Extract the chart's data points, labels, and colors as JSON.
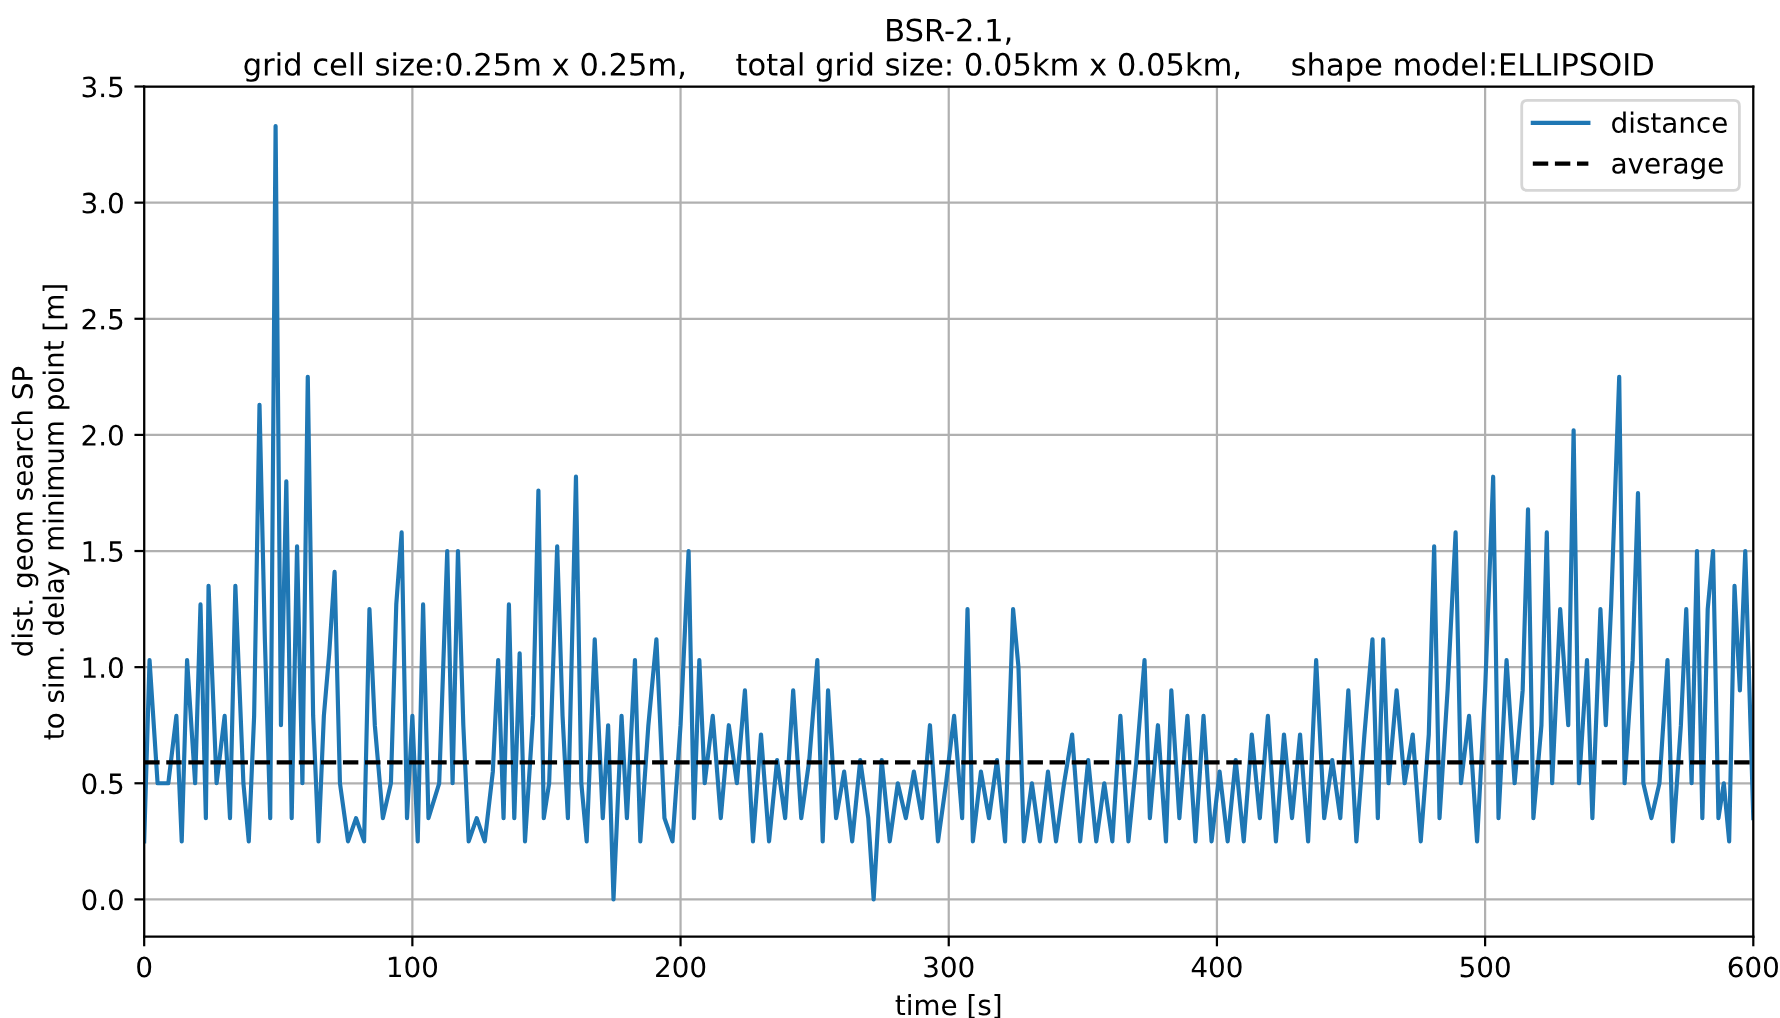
{
  "chart_data": {
    "type": "line",
    "title": "BSR-2.1,\ngrid cell size:0.25m x 0.25m,     total grid size: 0.05km x 0.05km,     shape model:ELLIPSOID",
    "xlabel": "time [s]",
    "ylabel": "dist. geom search SP\nto sim. delay minimum point [m]",
    "series": [
      {
        "name": "distance",
        "color": "#1f77b4",
        "x": [
          0,
          2,
          5,
          9,
          12,
          14,
          16,
          19,
          21,
          23,
          24,
          27,
          30,
          32,
          34,
          37,
          39,
          41,
          43,
          45,
          47,
          49,
          51,
          53,
          55,
          57,
          59,
          61,
          63,
          65,
          67,
          69,
          71,
          73,
          76,
          79,
          82,
          84,
          86,
          89,
          92,
          94,
          96,
          98,
          100,
          102,
          104,
          106,
          110,
          113,
          115,
          117,
          119,
          121,
          124,
          127,
          130,
          132,
          134,
          136,
          138,
          140,
          142,
          145,
          147,
          149,
          151,
          154,
          156,
          158,
          161,
          163,
          165,
          168,
          171,
          173,
          175,
          178,
          180,
          183,
          185,
          188,
          191,
          194,
          197,
          200,
          203,
          205,
          207,
          209,
          212,
          215,
          218,
          221,
          224,
          227,
          230,
          233,
          236,
          239,
          242,
          245,
          248,
          251,
          253,
          255,
          258,
          261,
          264,
          267,
          270,
          272,
          275,
          278,
          281,
          284,
          287,
          290,
          293,
          296,
          299,
          302,
          305,
          307,
          309,
          312,
          315,
          318,
          321,
          324,
          326,
          328,
          331,
          334,
          337,
          340,
          343,
          346,
          349,
          352,
          355,
          358,
          361,
          364,
          367,
          370,
          373,
          375,
          378,
          381,
          383,
          386,
          389,
          392,
          395,
          398,
          401,
          404,
          407,
          410,
          413,
          416,
          419,
          422,
          425,
          428,
          431,
          434,
          437,
          440,
          443,
          446,
          449,
          452,
          455,
          458,
          460,
          462,
          464,
          467,
          470,
          473,
          476,
          479,
          481,
          483,
          486,
          489,
          491,
          494,
          497,
          500,
          503,
          505,
          508,
          511,
          514,
          516,
          518,
          521,
          523,
          525,
          528,
          531,
          533,
          535,
          538,
          540,
          543,
          545,
          547,
          550,
          552,
          555,
          557,
          559,
          562,
          565,
          568,
          570,
          573,
          575,
          577,
          579,
          581,
          583,
          585,
          587,
          589,
          591,
          593,
          595,
          597,
          600
        ],
        "values": [
          0.25,
          1.03,
          0.5,
          0.5,
          0.79,
          0.25,
          1.03,
          0.5,
          1.27,
          0.35,
          1.35,
          0.5,
          0.79,
          0.35,
          1.35,
          0.5,
          0.25,
          0.79,
          2.13,
          1.12,
          0.35,
          3.33,
          0.75,
          1.8,
          0.35,
          1.52,
          0.5,
          2.25,
          0.79,
          0.25,
          0.79,
          1.06,
          1.41,
          0.5,
          0.25,
          0.35,
          0.25,
          1.25,
          0.75,
          0.35,
          0.5,
          1.27,
          1.58,
          0.35,
          0.79,
          0.25,
          1.27,
          0.35,
          0.5,
          1.5,
          0.5,
          1.5,
          0.75,
          0.25,
          0.35,
          0.25,
          0.55,
          1.03,
          0.35,
          1.27,
          0.35,
          1.06,
          0.25,
          0.79,
          1.76,
          0.35,
          0.5,
          1.52,
          0.79,
          0.35,
          1.82,
          0.5,
          0.25,
          1.12,
          0.35,
          0.75,
          0.0,
          0.79,
          0.35,
          1.03,
          0.25,
          0.75,
          1.12,
          0.35,
          0.25,
          0.75,
          1.5,
          0.35,
          1.03,
          0.5,
          0.79,
          0.35,
          0.75,
          0.5,
          0.9,
          0.25,
          0.71,
          0.25,
          0.6,
          0.35,
          0.9,
          0.35,
          0.6,
          1.03,
          0.25,
          0.9,
          0.35,
          0.55,
          0.25,
          0.6,
          0.35,
          0.0,
          0.6,
          0.25,
          0.5,
          0.35,
          0.55,
          0.35,
          0.75,
          0.25,
          0.5,
          0.79,
          0.35,
          1.25,
          0.25,
          0.55,
          0.35,
          0.6,
          0.25,
          1.25,
          1.0,
          0.25,
          0.5,
          0.25,
          0.55,
          0.25,
          0.5,
          0.71,
          0.25,
          0.6,
          0.25,
          0.5,
          0.25,
          0.79,
          0.25,
          0.6,
          1.03,
          0.35,
          0.75,
          0.25,
          0.9,
          0.35,
          0.79,
          0.25,
          0.79,
          0.25,
          0.55,
          0.25,
          0.6,
          0.25,
          0.71,
          0.35,
          0.79,
          0.25,
          0.71,
          0.35,
          0.71,
          0.25,
          1.03,
          0.35,
          0.6,
          0.35,
          0.9,
          0.25,
          0.71,
          1.12,
          0.35,
          1.12,
          0.5,
          0.9,
          0.5,
          0.71,
          0.25,
          0.71,
          1.52,
          0.35,
          0.9,
          1.58,
          0.5,
          0.79,
          0.25,
          0.9,
          1.82,
          0.35,
          1.03,
          0.5,
          0.9,
          1.68,
          0.35,
          0.75,
          1.58,
          0.5,
          1.25,
          0.75,
          2.02,
          0.5,
          1.03,
          0.35,
          1.25,
          0.75,
          1.27,
          2.25,
          0.5,
          1.03,
          1.75,
          0.5,
          0.35,
          0.5,
          1.03,
          0.25,
          0.75,
          1.25,
          0.5,
          1.5,
          0.35,
          1.25,
          1.5,
          0.35,
          0.5,
          0.25,
          1.35,
          0.9,
          1.5,
          0.35
        ]
      }
    ],
    "ref_lines": [
      {
        "axis": "y",
        "value": 0.59,
        "label": "average",
        "color": "#000000",
        "line_style": "dashed"
      }
    ],
    "xlim": [
      0,
      600
    ],
    "ylim": [
      -0.16,
      3.5
    ],
    "xticks": [
      0,
      100,
      200,
      300,
      400,
      500,
      600
    ],
    "yticks": [
      {
        "value": 0,
        "label": "0.0"
      },
      0.5,
      {
        "value": 1,
        "label": "1.0"
      },
      1.5,
      {
        "value": 2,
        "label": "2.0"
      },
      2.5,
      {
        "value": 3,
        "label": "3.0"
      },
      3.5
    ],
    "grid": true,
    "legend": "top right",
    "line_style": "solid",
    "marker": "none"
  }
}
